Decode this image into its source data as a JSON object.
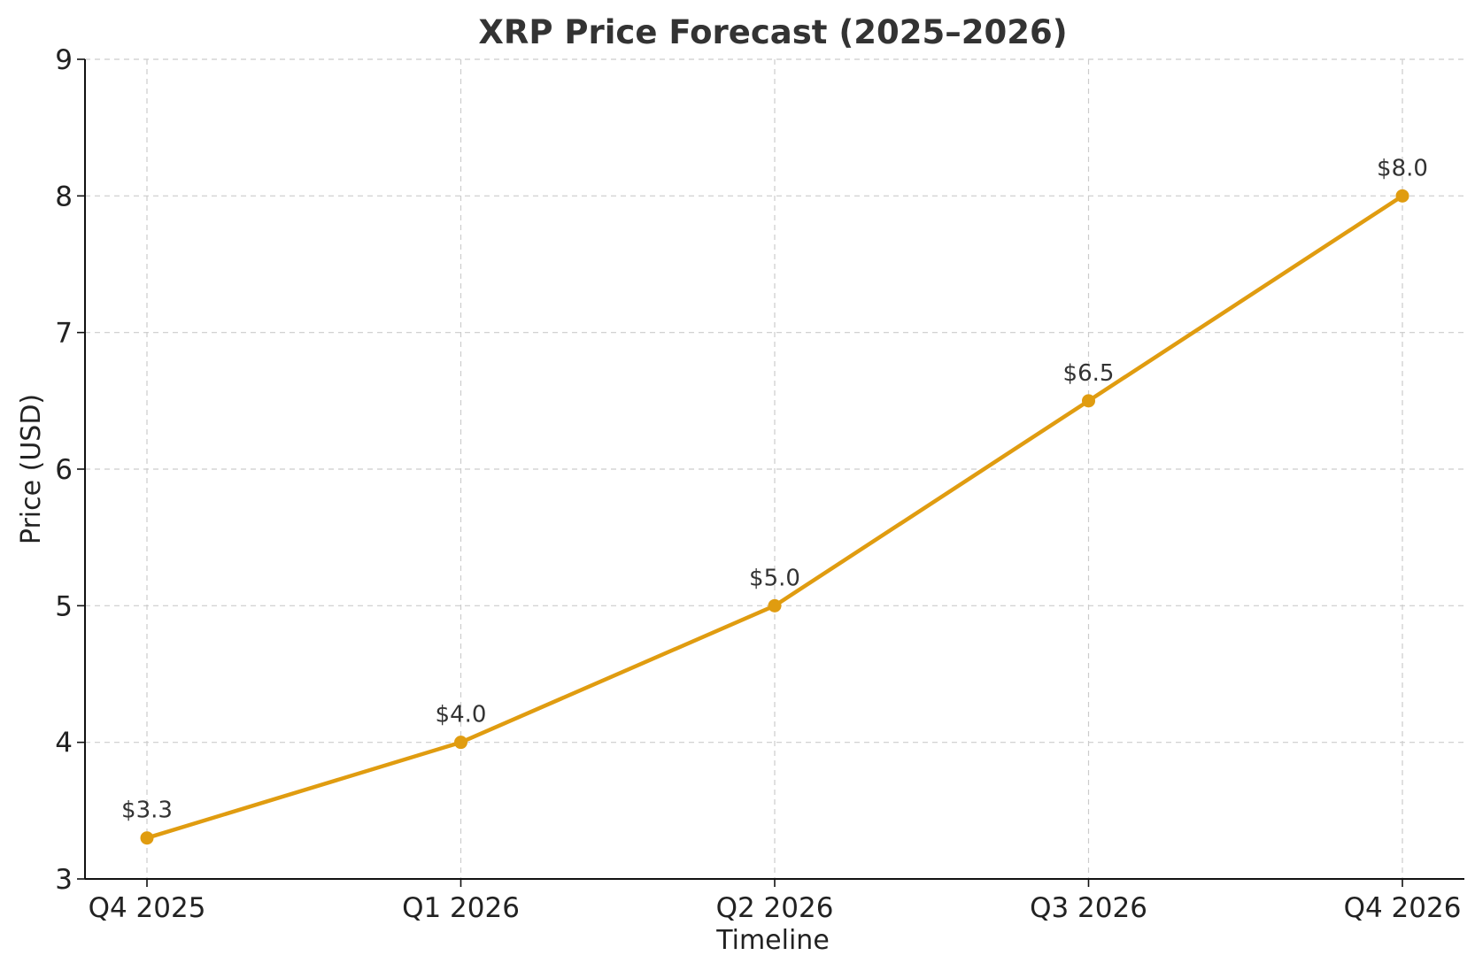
{
  "chart_data": {
    "type": "line",
    "title": "XRP Price Forecast (2025–2026)",
    "xlabel": "Timeline",
    "ylabel": "Price (USD)",
    "categories": [
      "Q4 2025",
      "Q1 2026",
      "Q2 2026",
      "Q3 2026",
      "Q4 2026"
    ],
    "series": [
      {
        "values": [
          3.3,
          4.0,
          5.0,
          6.5,
          8.0
        ],
        "data_labels": [
          "$3.3",
          "$4.0",
          "$5.0",
          "$6.5",
          "$8.0"
        ],
        "color": "#e09c10",
        "marker": "circle"
      }
    ],
    "ylim": [
      3,
      9
    ],
    "yticks": [
      3,
      4,
      5,
      6,
      7,
      8,
      9
    ],
    "ytick_labels": [
      "3",
      "4",
      "5",
      "6",
      "7",
      "8",
      "9"
    ],
    "grid": true,
    "legend": "none"
  }
}
